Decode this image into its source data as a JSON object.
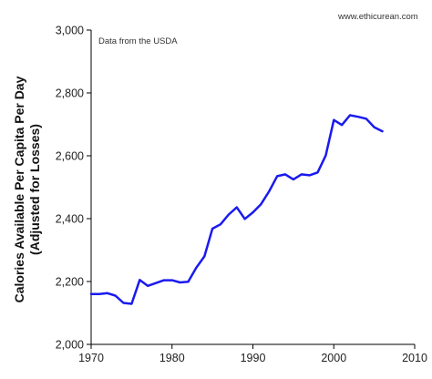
{
  "chart_data": {
    "type": "line",
    "title": "",
    "annotation": "Data from the USDA",
    "source_credit": "www.ethicurean.com",
    "ylabel_lines": [
      "Calories Available Per Capita Per Day",
      "(Adjusted for Losses)"
    ],
    "xlabel": "",
    "xlim": [
      1970,
      2010
    ],
    "ylim": [
      2000,
      3000
    ],
    "x_ticks": [
      1970,
      1980,
      1990,
      2000,
      2010
    ],
    "y_ticks": [
      2000,
      2200,
      2400,
      2600,
      2800,
      3000
    ],
    "x_tick_labels": [
      "1970",
      "1980",
      "1990",
      "2000",
      "2010"
    ],
    "y_tick_labels": [
      "2,000",
      "2,200",
      "2,400",
      "2,600",
      "2,800",
      "3,000"
    ],
    "grid": false,
    "line_color": "#1a1aee",
    "series": [
      {
        "x": [
          1970,
          1971,
          1972,
          1973,
          1974,
          1975,
          1976,
          1977,
          1978,
          1979,
          1980,
          1981,
          1982,
          1983,
          1984,
          1985,
          1986,
          1987,
          1988,
          1989,
          1990,
          1991,
          1992,
          1993,
          1994,
          1995,
          1996,
          1997,
          1998,
          1999,
          2000,
          2001,
          2002,
          2003,
          2004,
          2005,
          2006
        ],
        "y": [
          2160,
          2160,
          2163,
          2155,
          2132,
          2129,
          2205,
          2186,
          2195,
          2204,
          2204,
          2197,
          2199,
          2244,
          2280,
          2368,
          2382,
          2413,
          2436,
          2399,
          2420,
          2446,
          2487,
          2535,
          2541,
          2525,
          2541,
          2538,
          2547,
          2601,
          2714,
          2698,
          2729,
          2724,
          2718,
          2691,
          2678
        ]
      }
    ]
  }
}
